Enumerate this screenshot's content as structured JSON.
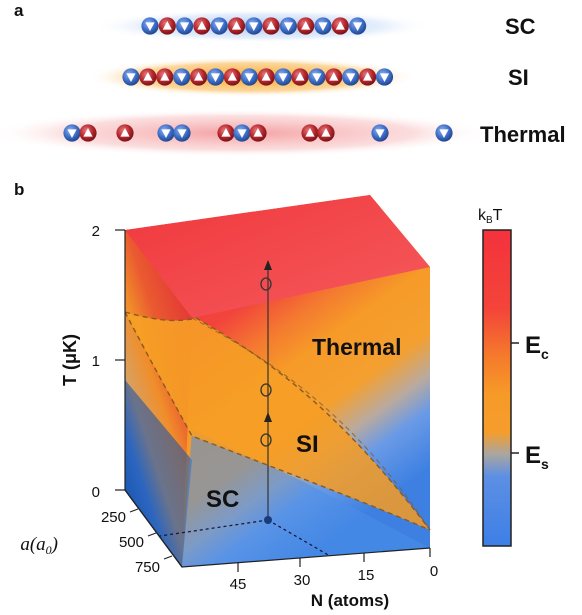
{
  "panel_a": {
    "letter": "a",
    "rows": [
      {
        "label": "SC",
        "spins": [
          "d",
          "u",
          "d",
          "u",
          "d",
          "u",
          "d",
          "u",
          "d",
          "u",
          "d",
          "u",
          "d",
          "u",
          "d",
          "u"
        ]
      },
      {
        "label": "SI",
        "spins": [
          "d",
          "u",
          "u",
          "d",
          "u",
          "d",
          "u",
          "d",
          "u",
          "d",
          "u",
          "d",
          "u",
          "d",
          "u",
          "d"
        ]
      },
      {
        "label": "Thermal",
        "spins": [
          "d",
          "u",
          "u",
          "d",
          "d",
          "u",
          "d",
          "u",
          "u",
          "u",
          "d",
          "d"
        ]
      }
    ],
    "colors": {
      "spin_down": "#3d6ec8",
      "spin_up": "#b4262c",
      "glow_sc": "#9ec2f4",
      "glow_si": "#f7a628",
      "glow_thermal": "#f6b9b9"
    }
  },
  "panel_b": {
    "letter": "b",
    "y_axis": {
      "label": "T (μK)",
      "ticks": [
        "0",
        "1",
        "2"
      ]
    },
    "a_axis": {
      "label_main": "a(a",
      "label_sub": "0",
      "label_close": ")",
      "ticks": [
        "250",
        "500",
        "750"
      ]
    },
    "n_axis": {
      "label": "N (atoms)",
      "ticks": [
        "45",
        "30",
        "15",
        "0"
      ]
    },
    "regions": {
      "thermal": "Thermal",
      "si": "SI",
      "sc": "SC"
    },
    "colorbar": {
      "top_label": "kBT",
      "top_label_main": "k",
      "top_label_sub": "B",
      "top_label_tail": "T",
      "ec_main": "E",
      "ec_sub": "c",
      "es_main": "E",
      "es_sub": "s"
    },
    "colors": {
      "thermal": "#f0373c",
      "si": "#f69a28",
      "sc": "#3d7fe0"
    }
  }
}
